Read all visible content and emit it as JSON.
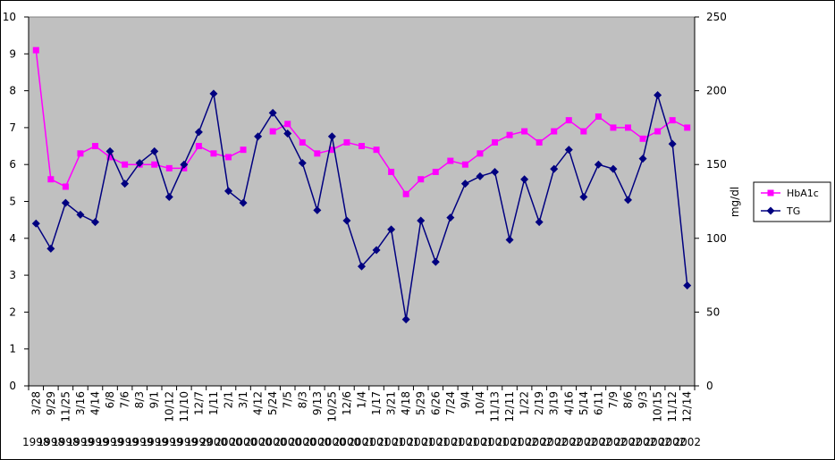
{
  "chart_data": {
    "type": "line",
    "categories": [
      "3/28",
      "9/29",
      "11/25",
      "3/16",
      "4/14",
      "6/8",
      "7/6",
      "8/3",
      "9/1",
      "10/12",
      "11/10",
      "12/7",
      "1/11",
      "2/1",
      "3/1",
      "4/12",
      "5/24",
      "7/5",
      "8/3",
      "9/13",
      "10/25",
      "12/6",
      "1/4",
      "1/17",
      "3/21",
      "4/18",
      "5/29",
      "6/26",
      "7/24",
      "9/4",
      "10/4",
      "11/13",
      "12/11",
      "1/22",
      "2/19",
      "3/19",
      "4/16",
      "5/14",
      "6/11",
      "7/9",
      "8/6",
      "9/3",
      "10/15",
      "11/12",
      "12/14"
    ],
    "year_labels": [
      "1998",
      "1998",
      "1998",
      "1999",
      "1999",
      "1999",
      "1999",
      "1999",
      "1999",
      "1999",
      "1999",
      "1999",
      "2000",
      "2000",
      "2000",
      "2000",
      "2000",
      "2000",
      "2000",
      "2000",
      "2000",
      "2000",
      "2001",
      "2001",
      "2001",
      "2001",
      "2001",
      "2001",
      "2001",
      "2001",
      "2001",
      "2001",
      "2001",
      "2002",
      "2002",
      "2002",
      "2002",
      "2002",
      "2002",
      "2002",
      "2002",
      "2002",
      "2002",
      "2002",
      "2002"
    ],
    "series": [
      {
        "name": "HbA1c",
        "axis": "left",
        "color": "#ff00ff",
        "marker": "square",
        "values": [
          9.1,
          5.6,
          5.4,
          6.3,
          6.5,
          6.2,
          6.0,
          6.0,
          6.0,
          5.9,
          5.9,
          6.5,
          6.3,
          6.2,
          6.4,
          null,
          6.9,
          7.1,
          6.6,
          6.3,
          6.4,
          6.6,
          6.5,
          6.4,
          5.8,
          5.2,
          5.6,
          5.8,
          6.1,
          6.0,
          6.3,
          6.6,
          6.8,
          6.9,
          6.6,
          6.9,
          7.2,
          6.9,
          7.3,
          7.0,
          7.0,
          6.7,
          6.9,
          7.2,
          7.0
        ]
      },
      {
        "name": "TG",
        "axis": "right",
        "color": "#000080",
        "marker": "diamond",
        "values": [
          110,
          93,
          124,
          116,
          111,
          159,
          137,
          151,
          159,
          128,
          150,
          172,
          198,
          132,
          124,
          169,
          185,
          171,
          151,
          119,
          169,
          112,
          81,
          92,
          106,
          45,
          112,
          84,
          114,
          137,
          142,
          145,
          99,
          140,
          111,
          147,
          160,
          128,
          150,
          147,
          126,
          154,
          197,
          164,
          68
        ]
      }
    ],
    "ylim_left": [
      0,
      10
    ],
    "yticks_left": [
      0,
      1,
      2,
      3,
      4,
      5,
      6,
      7,
      8,
      9,
      10
    ],
    "ylim_right": [
      0,
      250
    ],
    "yticks_right": [
      0,
      50,
      100,
      150,
      200,
      250
    ],
    "ylabel_right": "mg/dl",
    "plot_bg": "#c0c0c0",
    "legend_position": "right",
    "grid": false
  }
}
